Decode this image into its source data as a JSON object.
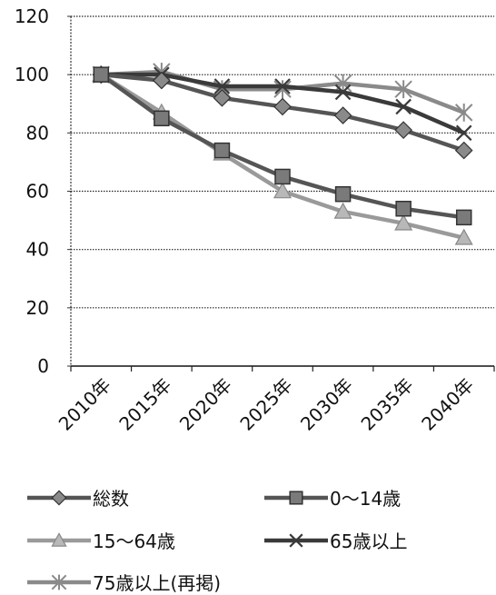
{
  "chart_data": {
    "type": "line",
    "title": "",
    "xlabel": "",
    "ylabel": "",
    "categories": [
      "2010年",
      "2015年",
      "2020年",
      "2025年",
      "2030年",
      "2035年",
      "2040年"
    ],
    "ylim": [
      0,
      120
    ],
    "yticks": [
      0,
      20,
      40,
      60,
      80,
      100,
      120
    ],
    "grid": "horizontal-dotted",
    "legend_placement": "bottom",
    "series": [
      {
        "name": "総数",
        "marker": "diamond",
        "color": "#555555",
        "values": [
          100,
          98,
          92,
          89,
          86,
          81,
          74
        ]
      },
      {
        "name": "0～14歳",
        "marker": "square",
        "color": "#555555",
        "values": [
          100,
          85,
          74,
          65,
          59,
          54,
          51
        ]
      },
      {
        "name": "15～64歳",
        "marker": "triangle",
        "color": "#9a9a9a",
        "values": [
          100,
          87,
          73,
          60,
          53,
          49,
          44
        ]
      },
      {
        "name": "65歳以上",
        "marker": "x",
        "color": "#3a3a3a",
        "values": [
          100,
          100,
          96,
          96,
          94,
          89,
          80
        ]
      },
      {
        "name": "75歳以上(再掲)",
        "marker": "star",
        "color": "#8a8a8a",
        "values": [
          100,
          101,
          95,
          95,
          97,
          95,
          87
        ]
      }
    ]
  }
}
